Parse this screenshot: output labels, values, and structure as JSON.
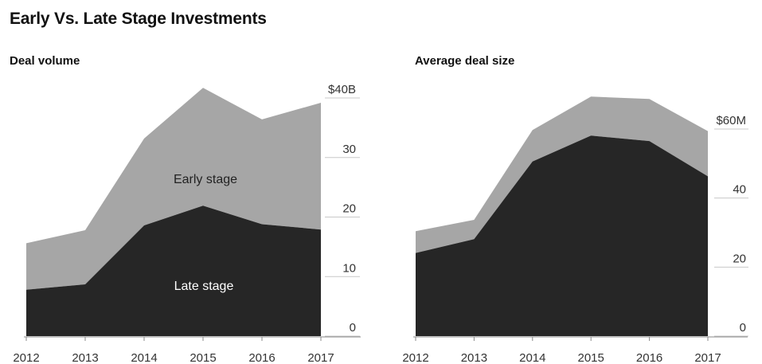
{
  "title": "Early Vs. Late Stage Investments",
  "colors": {
    "late": "#262626",
    "early": "#a6a6a6",
    "grid": "#c8c8c8",
    "axis": "#888888"
  },
  "chart_data": [
    {
      "type": "area",
      "stacked": true,
      "subtitle": "Deal volume",
      "x": [
        "2012",
        "2013",
        "2014",
        "2015",
        "2016",
        "2017"
      ],
      "series": [
        {
          "name": "Late stage",
          "values": [
            7.8,
            8.7,
            18.6,
            21.9,
            18.8,
            17.9
          ]
        },
        {
          "name": "Early stage",
          "values": [
            7.8,
            9.1,
            14.6,
            19.8,
            17.6,
            21.3
          ]
        }
      ],
      "ylim": [
        0,
        40
      ],
      "yticks": [
        0,
        10,
        20,
        30,
        40
      ],
      "ytick_labels": [
        "0",
        "10",
        "20",
        "30",
        "$40B"
      ],
      "grid": true,
      "axis_side": "right"
    },
    {
      "type": "area",
      "stacked": true,
      "subtitle": "Average deal size",
      "x": [
        "2012",
        "2013",
        "2014",
        "2015",
        "2016",
        "2017"
      ],
      "series": [
        {
          "name": "Late stage",
          "values": [
            24.1,
            28.1,
            50.6,
            58.1,
            56.5,
            46.3
          ]
        },
        {
          "name": "Early stage",
          "values": [
            6.3,
            5.6,
            9.1,
            11.3,
            12.2,
            13.1
          ]
        }
      ],
      "ylim": [
        0,
        60
      ],
      "yticks": [
        0,
        20,
        40,
        60
      ],
      "ytick_labels": [
        "0",
        "20",
        "40",
        "$60M"
      ],
      "grid": true,
      "axis_side": "right"
    }
  ]
}
